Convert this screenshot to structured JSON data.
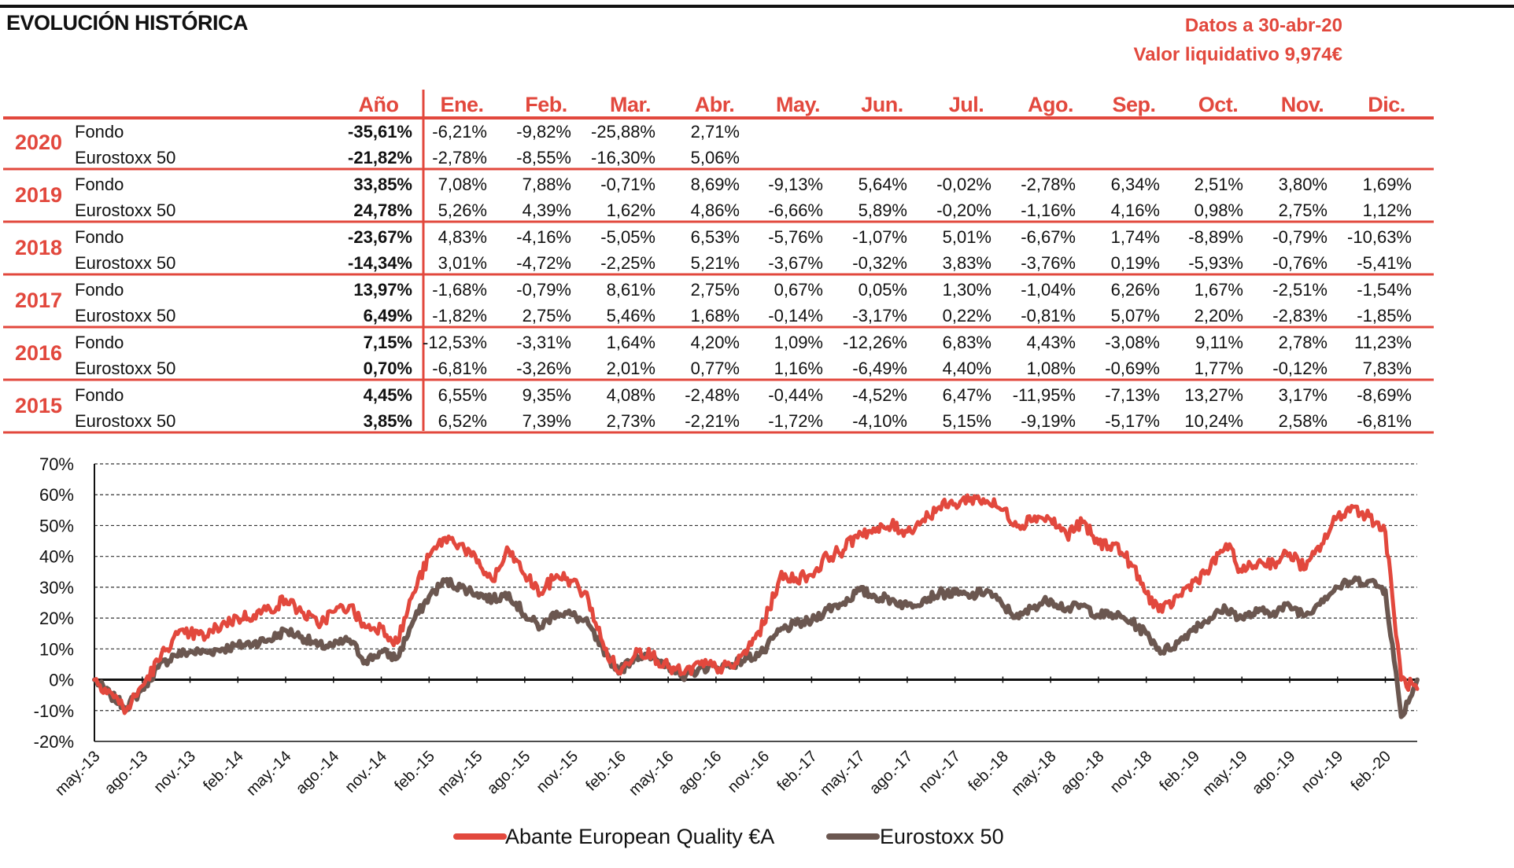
{
  "header": {
    "title": "EVOLUCIÓN HISTÓRICA",
    "date_label": "Datos a 30-abr-20",
    "nav_label": "Valor liquidativo 9,974€"
  },
  "colors": {
    "accent": "#e2483d",
    "benchmark": "#6b5750",
    "text": "#111111"
  },
  "table": {
    "year_header": "Año",
    "months": [
      "Ene.",
      "Feb.",
      "Mar.",
      "Abr.",
      "May.",
      "Jun.",
      "Jul.",
      "Ago.",
      "Sep.",
      "Oct.",
      "Nov.",
      "Dic."
    ],
    "rows": [
      {
        "year": "2020",
        "fondo": {
          "label": "Fondo",
          "annual": "-35,61%",
          "months": [
            "-6,21%",
            "-9,82%",
            "-25,88%",
            "2,71%",
            "",
            "",
            "",
            "",
            "",
            "",
            "",
            ""
          ]
        },
        "bench": {
          "label": "Eurostoxx 50",
          "annual": "-21,82%",
          "months": [
            "-2,78%",
            "-8,55%",
            "-16,30%",
            "5,06%",
            "",
            "",
            "",
            "",
            "",
            "",
            "",
            ""
          ]
        }
      },
      {
        "year": "2019",
        "fondo": {
          "label": "Fondo",
          "annual": "33,85%",
          "months": [
            "7,08%",
            "7,88%",
            "-0,71%",
            "8,69%",
            "-9,13%",
            "5,64%",
            "-0,02%",
            "-2,78%",
            "6,34%",
            "2,51%",
            "3,80%",
            "1,69%"
          ]
        },
        "bench": {
          "label": "Eurostoxx 50",
          "annual": "24,78%",
          "months": [
            "5,26%",
            "4,39%",
            "1,62%",
            "4,86%",
            "-6,66%",
            "5,89%",
            "-0,20%",
            "-1,16%",
            "4,16%",
            "0,98%",
            "2,75%",
            "1,12%"
          ]
        }
      },
      {
        "year": "2018",
        "fondo": {
          "label": "Fondo",
          "annual": "-23,67%",
          "months": [
            "4,83%",
            "-4,16%",
            "-5,05%",
            "6,53%",
            "-5,76%",
            "-1,07%",
            "5,01%",
            "-6,67%",
            "1,74%",
            "-8,89%",
            "-0,79%",
            "-10,63%"
          ]
        },
        "bench": {
          "label": "Eurostoxx 50",
          "annual": "-14,34%",
          "months": [
            "3,01%",
            "-4,72%",
            "-2,25%",
            "5,21%",
            "-3,67%",
            "-0,32%",
            "3,83%",
            "-3,76%",
            "0,19%",
            "-5,93%",
            "-0,76%",
            "-5,41%"
          ]
        }
      },
      {
        "year": "2017",
        "fondo": {
          "label": "Fondo",
          "annual": "13,97%",
          "months": [
            "-1,68%",
            "-0,79%",
            "8,61%",
            "2,75%",
            "0,67%",
            "0,05%",
            "1,30%",
            "-1,04%",
            "6,26%",
            "1,67%",
            "-2,51%",
            "-1,54%"
          ]
        },
        "bench": {
          "label": "Eurostoxx 50",
          "annual": "6,49%",
          "months": [
            "-1,82%",
            "2,75%",
            "5,46%",
            "1,68%",
            "-0,14%",
            "-3,17%",
            "0,22%",
            "-0,81%",
            "5,07%",
            "2,20%",
            "-2,83%",
            "-1,85%"
          ]
        }
      },
      {
        "year": "2016",
        "fondo": {
          "label": "Fondo",
          "annual": "7,15%",
          "months": [
            "-12,53%",
            "-3,31%",
            "1,64%",
            "4,20%",
            "1,09%",
            "-12,26%",
            "6,83%",
            "4,43%",
            "-3,08%",
            "9,11%",
            "2,78%",
            "11,23%"
          ]
        },
        "bench": {
          "label": "Eurostoxx 50",
          "annual": "0,70%",
          "months": [
            "-6,81%",
            "-3,26%",
            "2,01%",
            "0,77%",
            "1,16%",
            "-6,49%",
            "4,40%",
            "1,08%",
            "-0,69%",
            "1,77%",
            "-0,12%",
            "7,83%"
          ]
        }
      },
      {
        "year": "2015",
        "fondo": {
          "label": "Fondo",
          "annual": "4,45%",
          "months": [
            "6,55%",
            "9,35%",
            "4,08%",
            "-2,48%",
            "-0,44%",
            "-4,52%",
            "6,47%",
            "-11,95%",
            "-7,13%",
            "13,27%",
            "3,17%",
            "-8,69%"
          ]
        },
        "bench": {
          "label": "Eurostoxx 50",
          "annual": "3,85%",
          "months": [
            "6,52%",
            "7,39%",
            "2,73%",
            "-2,21%",
            "-1,72%",
            "-4,10%",
            "5,15%",
            "-9,19%",
            "-5,17%",
            "10,24%",
            "2,58%",
            "-6,81%"
          ]
        }
      }
    ]
  },
  "chart_data": {
    "type": "line",
    "ylim": [
      -20,
      70
    ],
    "yticks": [
      "70%",
      "60%",
      "50%",
      "40%",
      "30%",
      "20%",
      "10%",
      "0%",
      "-10%",
      "-20%"
    ],
    "y_values": [
      70,
      60,
      50,
      40,
      30,
      20,
      10,
      0,
      -10,
      -20
    ],
    "xticks": [
      "may.-13",
      "ago.-13",
      "nov.-13",
      "feb.-14",
      "may.-14",
      "ago.-14",
      "nov.-14",
      "feb.-15",
      "may.-15",
      "ago.-15",
      "nov.-15",
      "feb.-16",
      "may.-16",
      "ago.-16",
      "nov.-16",
      "feb.-17",
      "may.-17",
      "ago.-17",
      "nov.-17",
      "feb.-18",
      "may.-18",
      "ago.-18",
      "nov.-18",
      "feb.-19",
      "may.-19",
      "ago.-19",
      "nov.-19",
      "feb.-20"
    ],
    "xtick_dates": [
      "2013-05",
      "2013-08",
      "2013-11",
      "2014-02",
      "2014-05",
      "2014-08",
      "2014-11",
      "2015-02",
      "2015-05",
      "2015-08",
      "2015-11",
      "2016-02",
      "2016-05",
      "2016-08",
      "2016-11",
      "2017-02",
      "2017-05",
      "2017-08",
      "2017-11",
      "2018-02",
      "2018-05",
      "2018-08",
      "2018-11",
      "2019-02",
      "2019-05",
      "2019-08",
      "2019-11",
      "2020-02"
    ],
    "grid": true,
    "legend_position": "bottom-center",
    "series": [
      {
        "name": "Abante European Quality €A",
        "color": "#e2483d",
        "x": [
          "2013-05",
          "2013-06",
          "2013-07",
          "2013-08",
          "2013-09",
          "2013-10",
          "2013-11",
          "2013-12",
          "2014-01",
          "2014-02",
          "2014-03",
          "2014-04",
          "2014-05",
          "2014-06",
          "2014-07",
          "2014-08",
          "2014-09",
          "2014-10",
          "2014-11",
          "2014-12",
          "2015-01",
          "2015-02",
          "2015-03",
          "2015-04",
          "2015-05",
          "2015-06",
          "2015-07",
          "2015-08",
          "2015-09",
          "2015-10",
          "2015-11",
          "2015-12",
          "2016-01",
          "2016-02",
          "2016-03",
          "2016-04",
          "2016-05",
          "2016-06",
          "2016-07",
          "2016-08",
          "2016-09",
          "2016-10",
          "2016-11",
          "2016-12",
          "2017-01",
          "2017-02",
          "2017-03",
          "2017-04",
          "2017-05",
          "2017-06",
          "2017-07",
          "2017-08",
          "2017-09",
          "2017-10",
          "2017-11",
          "2017-12",
          "2018-01",
          "2018-02",
          "2018-03",
          "2018-04",
          "2018-05",
          "2018-06",
          "2018-07",
          "2018-08",
          "2018-09",
          "2018-10",
          "2018-11",
          "2018-12",
          "2019-01",
          "2019-02",
          "2019-03",
          "2019-04",
          "2019-05",
          "2019-06",
          "2019-07",
          "2019-08",
          "2019-09",
          "2019-10",
          "2019-11",
          "2019-12",
          "2020-01",
          "2020-02",
          "2020-03",
          "2020-04"
        ],
        "y": [
          0,
          -4,
          -10,
          -2,
          6,
          14,
          15,
          14,
          18,
          20,
          21,
          23,
          26,
          22,
          18,
          22,
          24,
          17,
          17,
          12,
          28,
          40,
          46,
          44,
          38,
          32,
          42,
          34,
          28,
          34,
          32,
          26,
          10,
          2,
          10,
          8,
          4,
          2,
          5,
          4,
          4,
          10,
          18,
          33,
          33,
          34,
          40,
          42,
          48,
          48,
          50,
          48,
          52,
          56,
          57,
          59,
          58,
          55,
          50,
          53,
          52,
          47,
          51,
          44,
          44,
          38,
          28,
          22,
          27,
          32,
          36,
          44,
          35,
          38,
          38,
          41,
          36,
          44,
          53,
          56,
          53,
          48,
          0,
          -3
        ]
      },
      {
        "name": "Eurostoxx 50",
        "color": "#6b5750",
        "x": [
          "2013-05",
          "2013-06",
          "2013-07",
          "2013-08",
          "2013-09",
          "2013-10",
          "2013-11",
          "2013-12",
          "2014-01",
          "2014-02",
          "2014-03",
          "2014-04",
          "2014-05",
          "2014-06",
          "2014-07",
          "2014-08",
          "2014-09",
          "2014-10",
          "2014-11",
          "2014-12",
          "2015-01",
          "2015-02",
          "2015-03",
          "2015-04",
          "2015-05",
          "2015-06",
          "2015-07",
          "2015-08",
          "2015-09",
          "2015-10",
          "2015-11",
          "2015-12",
          "2016-01",
          "2016-02",
          "2016-03",
          "2016-04",
          "2016-05",
          "2016-06",
          "2016-07",
          "2016-08",
          "2016-09",
          "2016-10",
          "2016-11",
          "2016-12",
          "2017-01",
          "2017-02",
          "2017-03",
          "2017-04",
          "2017-05",
          "2017-06",
          "2017-07",
          "2017-08",
          "2017-09",
          "2017-10",
          "2017-11",
          "2017-12",
          "2018-01",
          "2018-02",
          "2018-03",
          "2018-04",
          "2018-05",
          "2018-06",
          "2018-07",
          "2018-08",
          "2018-09",
          "2018-10",
          "2018-11",
          "2018-12",
          "2019-01",
          "2019-02",
          "2019-03",
          "2019-04",
          "2019-05",
          "2019-06",
          "2019-07",
          "2019-08",
          "2019-09",
          "2019-10",
          "2019-11",
          "2019-12",
          "2020-01",
          "2020-02",
          "2020-03",
          "2020-04"
        ],
        "y": [
          0,
          -5,
          -9,
          -3,
          4,
          8,
          9,
          9,
          10,
          11,
          12,
          13,
          16,
          14,
          11,
          11,
          13,
          6,
          9,
          7,
          19,
          27,
          32,
          30,
          28,
          26,
          28,
          21,
          17,
          22,
          21,
          18,
          8,
          3,
          8,
          7,
          5,
          0,
          4,
          4,
          5,
          7,
          9,
          16,
          18,
          19,
          23,
          25,
          29,
          27,
          26,
          24,
          26,
          28,
          28,
          27,
          29,
          24,
          20,
          24,
          26,
          23,
          24,
          21,
          21,
          19,
          15,
          9,
          12,
          17,
          20,
          23,
          20,
          22,
          22,
          24,
          21,
          26,
          30,
          32,
          32,
          29,
          -12,
          0
        ]
      }
    ]
  }
}
